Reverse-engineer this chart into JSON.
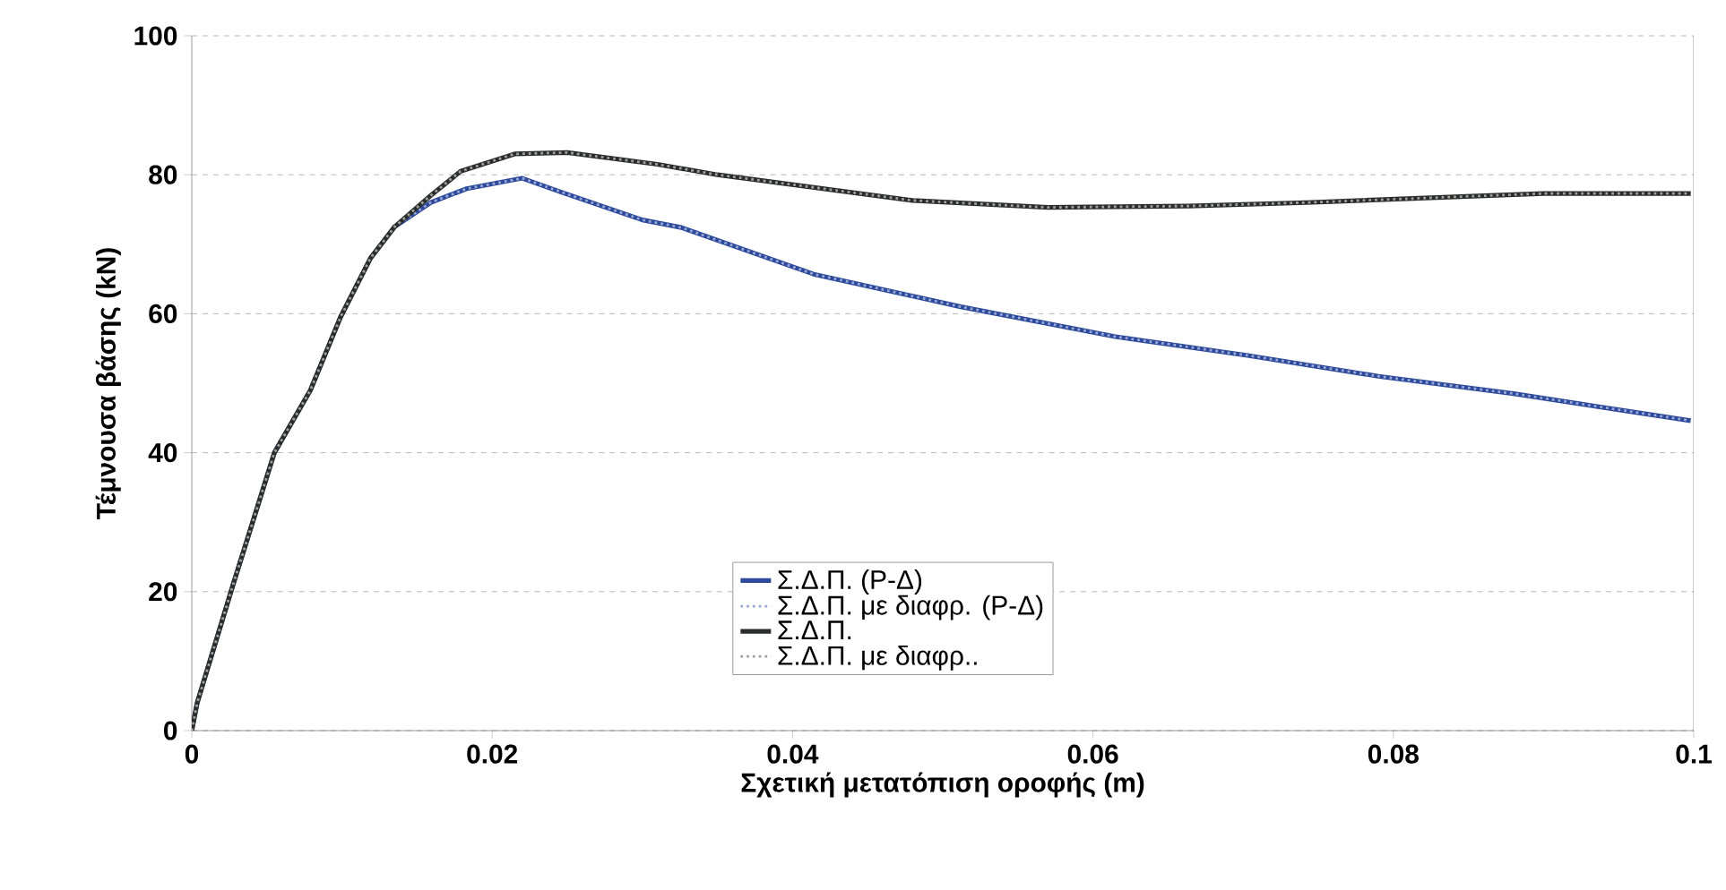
{
  "chart_data": {
    "type": "line",
    "xlabel": "Σχετική μετατόπιση οροφής (m)",
    "ylabel": "Τέμνουσα βάσης (kN)",
    "xlim": [
      0,
      0.1
    ],
    "ylim": [
      0,
      100
    ],
    "xticks": [
      0,
      0.02,
      0.04,
      0.06,
      0.08,
      0.1
    ],
    "yticks": [
      0,
      20,
      40,
      60,
      80,
      100
    ],
    "grid": "y",
    "legend": "bottom right",
    "marker": "none",
    "series": [
      {
        "name": "Σ.Δ.Π. (P-Δ)",
        "color": "#2e4a9a",
        "line_style": "solid",
        "x": [
          0,
          0.00036,
          0.00275,
          0.0055,
          0.0079,
          0.0099,
          0.0119,
          0.0135,
          0.0159,
          0.0183,
          0.022,
          0.0246,
          0.03,
          0.0326,
          0.0414,
          0.0512,
          0.0615,
          0.0703,
          0.079,
          0.088,
          0.0998
        ],
        "values": [
          0,
          4,
          21,
          40,
          49,
          59.5,
          68,
          72.5,
          76,
          78,
          79.5,
          77.5,
          73.5,
          72.4,
          65.7,
          61,
          56.7,
          54,
          51,
          48.5,
          44.6
        ]
      },
      {
        "name": "Σ.Δ.Π. με διαφρ. (P-Δ)",
        "color": "#9aa8d8",
        "line_style": "dotted",
        "x": [
          0,
          0.00036,
          0.00275,
          0.0055,
          0.0079,
          0.0099,
          0.0119,
          0.0135,
          0.0159,
          0.0183,
          0.022,
          0.0246,
          0.03,
          0.0326,
          0.0414,
          0.0512,
          0.0615,
          0.0703,
          0.079,
          0.088,
          0.0998
        ],
        "values": [
          0,
          4,
          21,
          40,
          49,
          59.5,
          68,
          72.5,
          76,
          78,
          79.5,
          77.5,
          73.5,
          72.4,
          65.7,
          61,
          56.7,
          54,
          51,
          48.5,
          44.6
        ]
      },
      {
        "name": "Σ.Δ.Π.",
        "color": "#2a2e2a",
        "line_style": "solid",
        "x": [
          0,
          0.00036,
          0.00275,
          0.0055,
          0.0079,
          0.0099,
          0.0119,
          0.0135,
          0.0159,
          0.0179,
          0.0215,
          0.025,
          0.031,
          0.035,
          0.048,
          0.057,
          0.0664,
          0.0742,
          0.09,
          0.0998
        ],
        "values": [
          0,
          4,
          21,
          40,
          49,
          59.5,
          68,
          72.5,
          77,
          80.5,
          83,
          83.2,
          81.5,
          80,
          76.3,
          75.3,
          75.5,
          76,
          77.3,
          77.3
        ]
      },
      {
        "name": "Σ.Δ.Π. με διαφρ..",
        "color": "#a0a0a0",
        "line_style": "dotted",
        "x": [
          0,
          0.00036,
          0.00275,
          0.0055,
          0.0079,
          0.0099,
          0.0119,
          0.0135,
          0.0159,
          0.0179,
          0.0215,
          0.025,
          0.031,
          0.035,
          0.048,
          0.057,
          0.0664,
          0.0742,
          0.09,
          0.0998
        ],
        "values": [
          0,
          4,
          21,
          40,
          49,
          59.5,
          68,
          72.5,
          77,
          80.5,
          83,
          83.2,
          81.5,
          80,
          76.3,
          75.3,
          75.5,
          76,
          77.3,
          77.3
        ]
      }
    ]
  }
}
